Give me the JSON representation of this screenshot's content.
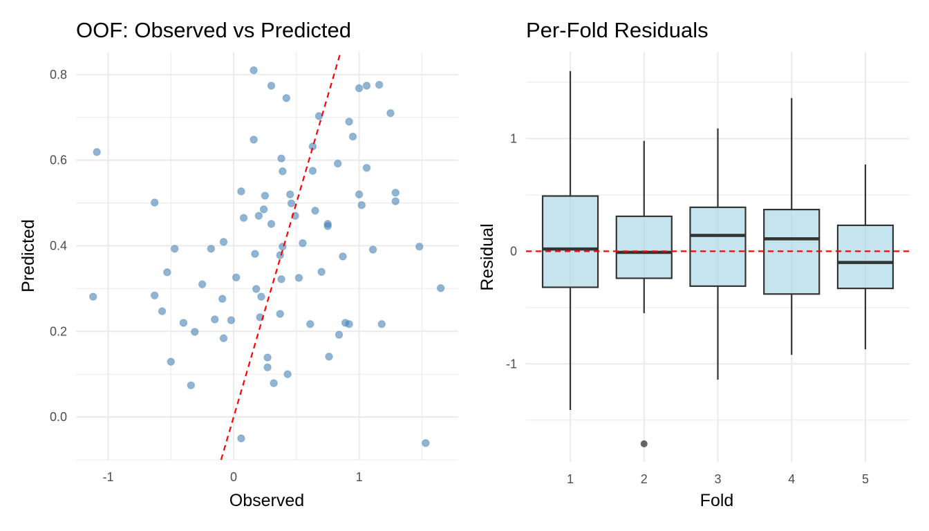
{
  "chart_data": [
    {
      "type": "scatter",
      "title": "OOF: Observed vs Predicted",
      "xlabel": "Observed",
      "ylabel": "Predicted",
      "xlim": [
        -1.256,
        1.79
      ],
      "ylim": [
        -0.1,
        0.853
      ],
      "x_ticks": [
        -1,
        0,
        1
      ],
      "x_tick_labels": [
        "-1",
        "0",
        "1"
      ],
      "x_minor_ticks": [
        -0.5,
        0.5,
        1.5
      ],
      "y_ticks": [
        0.0,
        0.2,
        0.4,
        0.6,
        0.8
      ],
      "y_tick_labels": [
        "0.0",
        "0.2",
        "0.4",
        "0.6",
        "0.8"
      ],
      "y_minor_ticks": [
        -0.1,
        0.1,
        0.3,
        0.5,
        0.7
      ],
      "grid": true,
      "point_color": "#4682b4",
      "point_alpha": 0.6,
      "reference_line": {
        "type": "identity",
        "slope": 1,
        "intercept": 0,
        "color": "#ff0000",
        "style": "dashed"
      },
      "points": [
        [
          0.16,
          0.81
        ],
        [
          0.3,
          0.774
        ],
        [
          0.42,
          0.745
        ],
        [
          0.68,
          0.703
        ],
        [
          1.0,
          0.768
        ],
        [
          1.06,
          0.774
        ],
        [
          1.16,
          0.776
        ],
        [
          1.25,
          0.71
        ],
        [
          0.92,
          0.69
        ],
        [
          0.95,
          0.655
        ],
        [
          0.16,
          0.648
        ],
        [
          0.63,
          0.632
        ],
        [
          -1.09,
          0.619
        ],
        [
          0.38,
          0.604
        ],
        [
          0.39,
          0.574
        ],
        [
          0.63,
          0.575
        ],
        [
          0.83,
          0.592
        ],
        [
          1.06,
          0.582
        ],
        [
          0.06,
          0.527
        ],
        [
          0.25,
          0.517
        ],
        [
          0.45,
          0.52
        ],
        [
          1.0,
          0.52
        ],
        [
          1.29,
          0.524
        ],
        [
          1.29,
          0.504
        ],
        [
          -0.63,
          0.501
        ],
        [
          0.46,
          0.499
        ],
        [
          1.02,
          0.495
        ],
        [
          0.24,
          0.485
        ],
        [
          0.65,
          0.482
        ],
        [
          0.2,
          0.47
        ],
        [
          0.49,
          0.47
        ],
        [
          0.08,
          0.465
        ],
        [
          0.3,
          0.451
        ],
        [
          0.75,
          0.451
        ],
        [
          0.75,
          0.446
        ],
        [
          -0.08,
          0.409
        ],
        [
          -0.47,
          0.393
        ],
        [
          -0.18,
          0.393
        ],
        [
          0.39,
          0.398
        ],
        [
          0.55,
          0.406
        ],
        [
          1.11,
          0.391
        ],
        [
          1.48,
          0.398
        ],
        [
          0.17,
          0.381
        ],
        [
          0.37,
          0.378
        ],
        [
          0.87,
          0.375
        ],
        [
          -0.53,
          0.338
        ],
        [
          0.7,
          0.339
        ],
        [
          0.02,
          0.326
        ],
        [
          0.52,
          0.325
        ],
        [
          0.38,
          0.322
        ],
        [
          -0.25,
          0.31
        ],
        [
          0.18,
          0.299
        ],
        [
          1.65,
          0.301
        ],
        [
          -1.12,
          0.281
        ],
        [
          -0.63,
          0.284
        ],
        [
          0.22,
          0.281
        ],
        [
          -0.09,
          0.276
        ],
        [
          -0.57,
          0.247
        ],
        [
          0.37,
          0.241
        ],
        [
          0.21,
          0.233
        ],
        [
          -0.15,
          0.228
        ],
        [
          -0.02,
          0.226
        ],
        [
          -0.4,
          0.22
        ],
        [
          0.61,
          0.217
        ],
        [
          0.89,
          0.22
        ],
        [
          0.92,
          0.217
        ],
        [
          1.18,
          0.217
        ],
        [
          -0.31,
          0.199
        ],
        [
          0.84,
          0.192
        ],
        [
          -0.08,
          0.184
        ],
        [
          0.76,
          0.141
        ],
        [
          0.27,
          0.139
        ],
        [
          -0.5,
          0.129
        ],
        [
          0.27,
          0.116
        ],
        [
          0.43,
          0.1
        ],
        [
          0.32,
          0.079
        ],
        [
          -0.34,
          0.074
        ],
        [
          0.06,
          -0.05
        ],
        [
          1.53,
          -0.061
        ]
      ]
    },
    {
      "type": "box",
      "title": "Per-Fold Residuals",
      "xlabel": "Fold",
      "ylabel": "Residual",
      "categories": [
        "1",
        "2",
        "3",
        "4",
        "5"
      ],
      "ylim": [
        -1.87,
        1.77
      ],
      "y_ticks": [
        -1,
        0,
        1
      ],
      "y_tick_labels": [
        "-1",
        "0",
        "1"
      ],
      "y_minor_ticks": [
        -1.5,
        -0.5,
        0.5,
        1.5
      ],
      "grid": true,
      "box_fill": "#add8e6",
      "box_fill_alpha": 0.7,
      "box_stroke": "#333333",
      "reference_line": {
        "y": 0,
        "color": "#ff0000",
        "style": "dashed"
      },
      "boxes": [
        {
          "fold": "1",
          "whisker_low": -1.41,
          "q1": -0.32,
          "median": 0.02,
          "q3": 0.49,
          "whisker_high": 1.6,
          "outliers": []
        },
        {
          "fold": "2",
          "whisker_low": -0.55,
          "q1": -0.24,
          "median": -0.01,
          "q3": 0.31,
          "whisker_high": 0.98,
          "outliers": [
            -1.71
          ]
        },
        {
          "fold": "3",
          "whisker_low": -1.14,
          "q1": -0.31,
          "median": 0.14,
          "q3": 0.39,
          "whisker_high": 1.09,
          "outliers": []
        },
        {
          "fold": "4",
          "whisker_low": -0.92,
          "q1": -0.38,
          "median": 0.11,
          "q3": 0.37,
          "whisker_high": 1.36,
          "outliers": []
        },
        {
          "fold": "5",
          "whisker_low": -0.87,
          "q1": -0.33,
          "median": -0.1,
          "q3": 0.23,
          "whisker_high": 0.77,
          "outliers": []
        }
      ]
    }
  ]
}
